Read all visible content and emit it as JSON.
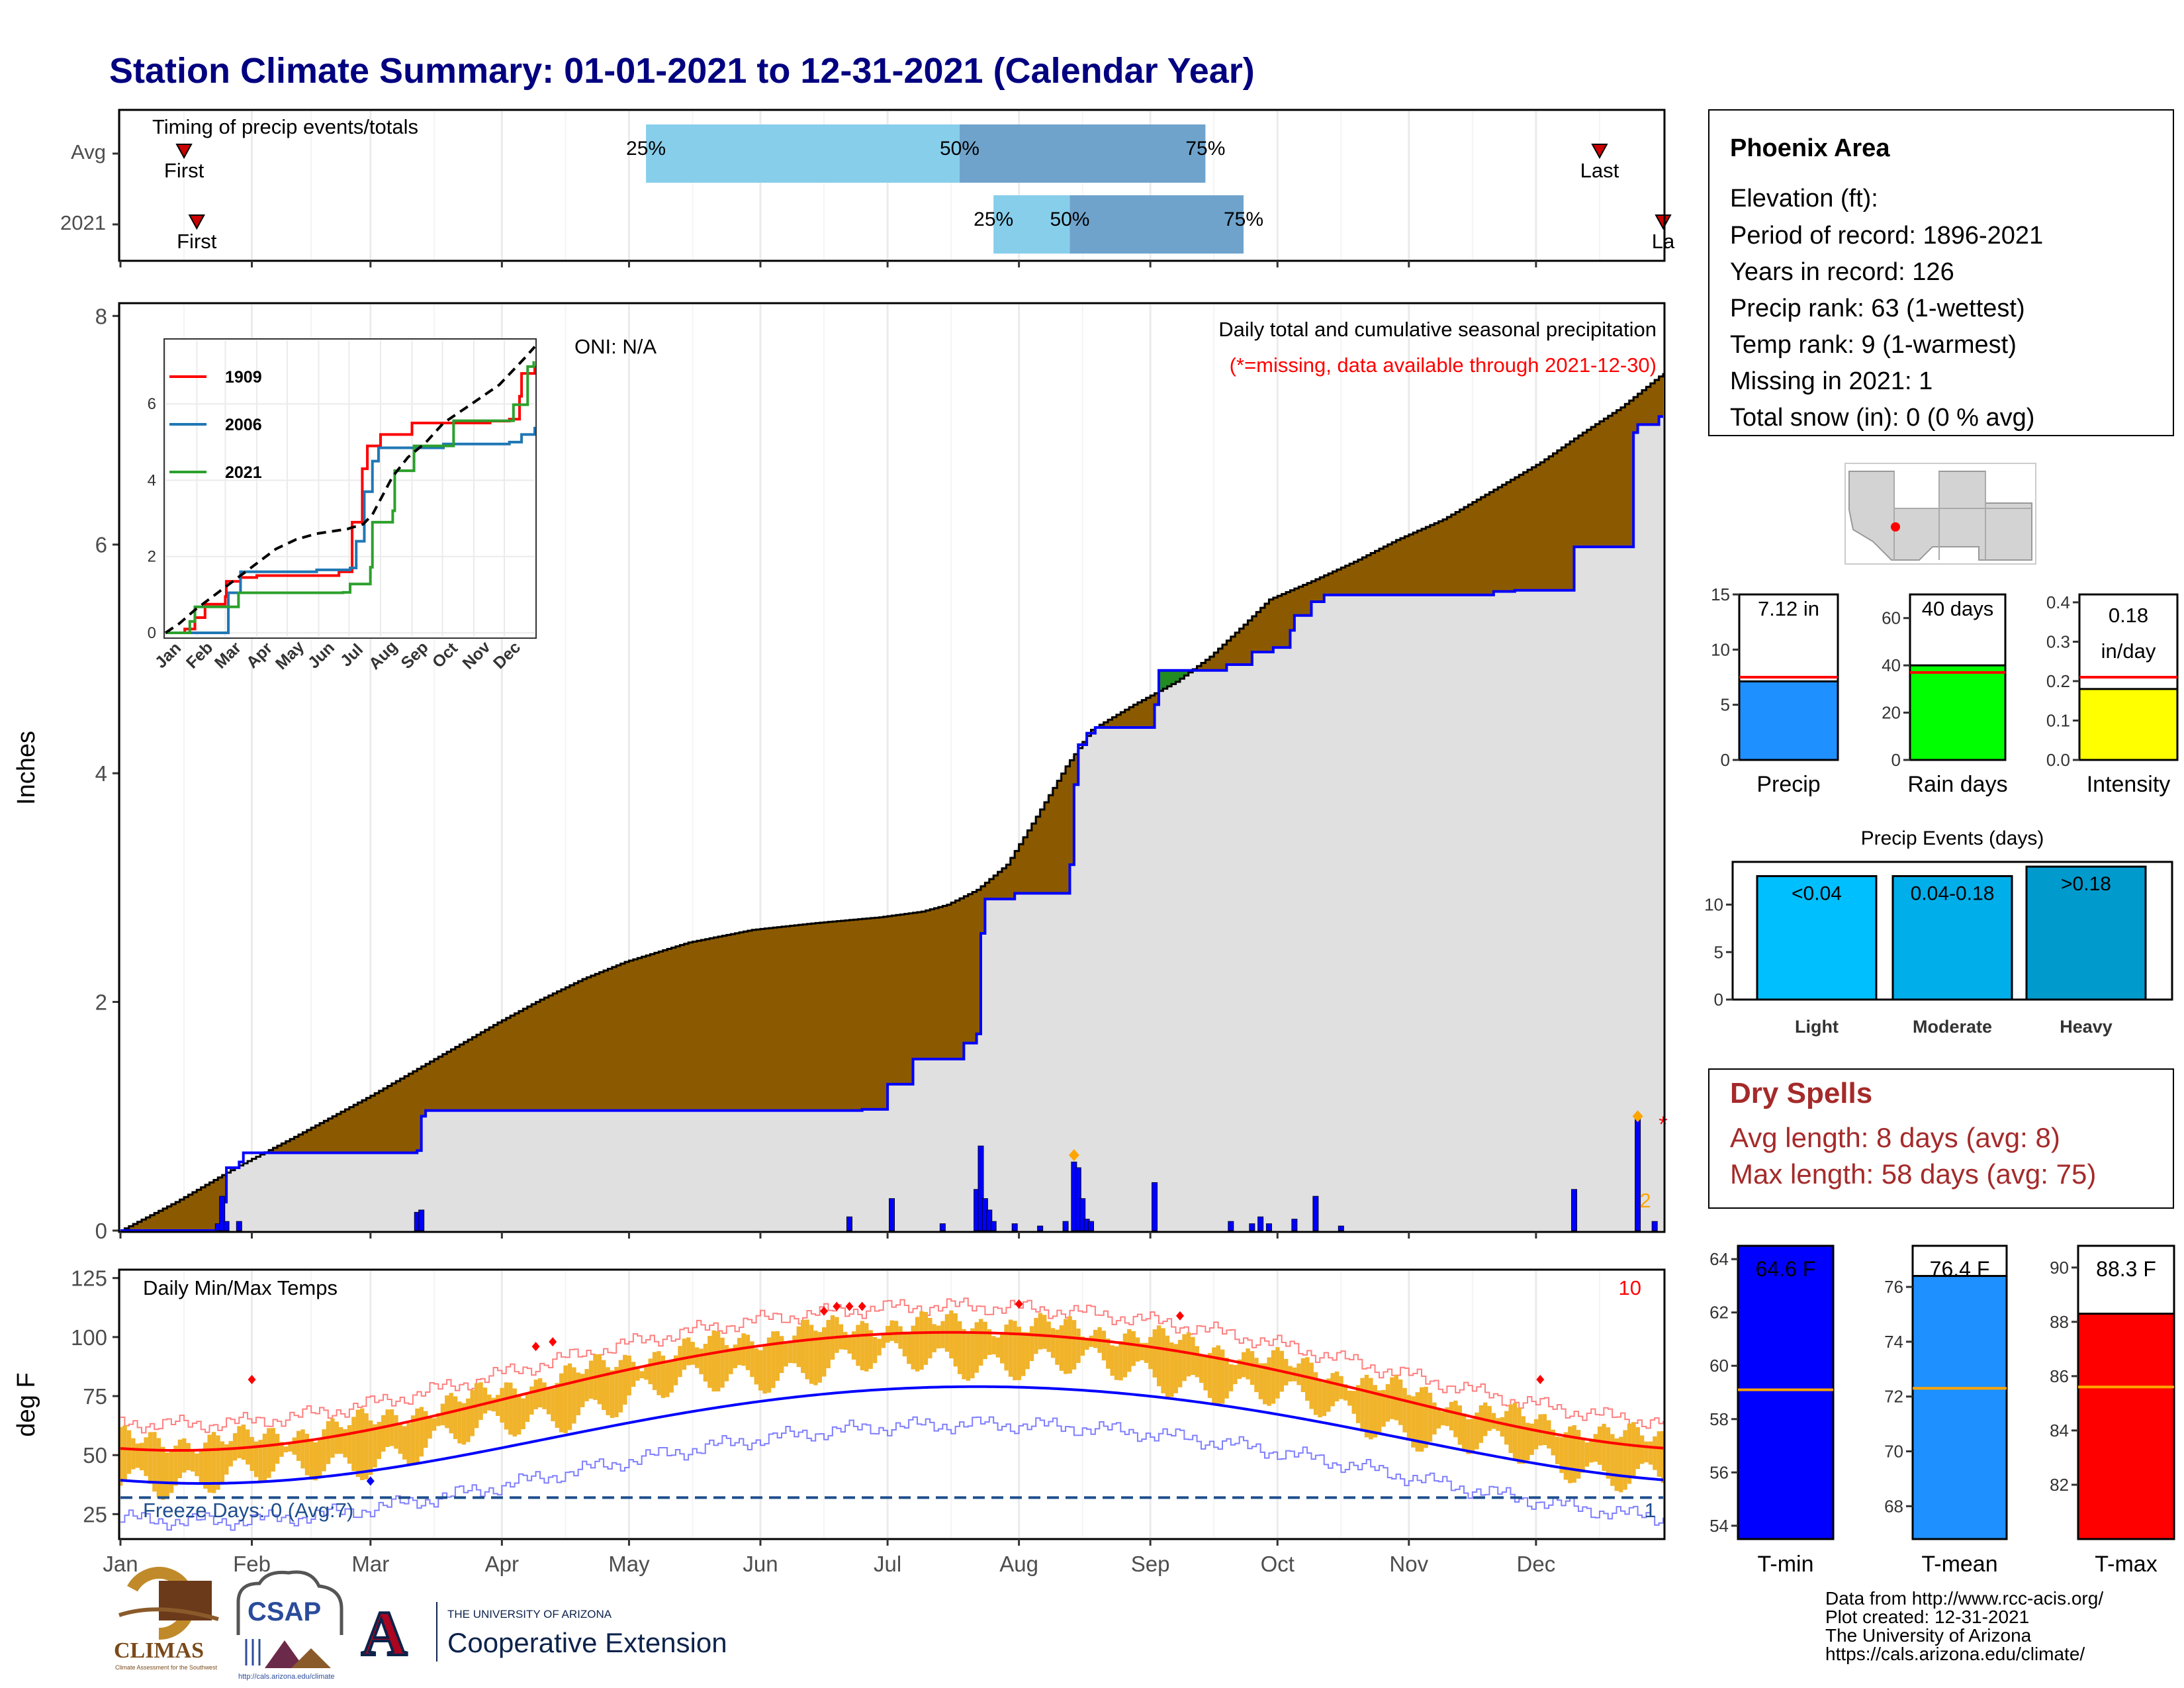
{
  "page": {
    "title": "Station Climate Summary: 01-01-2021 to 12-31-2021 (Calendar Year)"
  },
  "colors": {
    "title": "#000080",
    "cum_fill": "#8B5A00",
    "cum_line": "#0000FF",
    "avg_cum_gray": "#E0E0E0",
    "timing_light": "#87CEEB",
    "timing_dark": "#6FA3CC",
    "temp_band": "#F0B32A",
    "avg_max": "#FF0000",
    "avg_min": "#0000FF",
    "precip_bar": "#1E90FF",
    "raindays_bar": "#00FF00",
    "intensity_bar": "#FFFF00",
    "light_bar": "#00BFFF",
    "moderate_bar": "#00AEEA",
    "heavy_bar": "#009ACD",
    "dry_text": "#A52A2A",
    "tmin_bar": "#0000FF",
    "tmean_bar": "#1E90FF",
    "tmax_bar": "#FF0000",
    "orange_line": "#FFA500"
  },
  "timing": {
    "title": "Timing of precip events/totals",
    "rows": [
      "Avg",
      "2021"
    ],
    "avg": {
      "first_doy": 16,
      "q25_doy": 125,
      "q50_doy": 199,
      "q75_doy": 257,
      "last_doy": 350
    },
    "y2021": {
      "first_doy": 19,
      "q25_doy": 207,
      "q50_doy": 225,
      "q75_doy": 266,
      "last_doy": 365
    },
    "labels": {
      "first": "First",
      "last": "Last",
      "last_clipped": "La",
      "p25": "25%",
      "p50": "50%",
      "p75": "75%"
    }
  },
  "precip_panel": {
    "ylabel": "Inches",
    "oni": "ONI: N/A",
    "title": "Daily total and cumulative seasonal precipitation",
    "missing_note": "(*=missing, data available through 2021-12-30)",
    "missing_mark": "*",
    "count_mark": "2",
    "y_ticks": [
      0,
      2,
      4,
      6,
      8
    ],
    "ylim": [
      0,
      8.1
    ],
    "avg_cum": [
      [
        1,
        0
      ],
      [
        14,
        0.25
      ],
      [
        28,
        0.55
      ],
      [
        42,
        0.82
      ],
      [
        60,
        1.18
      ],
      [
        75,
        1.5
      ],
      [
        90,
        1.82
      ],
      [
        100,
        2.02
      ],
      [
        110,
        2.2
      ],
      [
        120,
        2.35
      ],
      [
        135,
        2.52
      ],
      [
        150,
        2.63
      ],
      [
        165,
        2.69
      ],
      [
        180,
        2.74
      ],
      [
        190,
        2.79
      ],
      [
        196,
        2.85
      ],
      [
        203,
        2.98
      ],
      [
        210,
        3.2
      ],
      [
        217,
        3.62
      ],
      [
        224,
        4.06
      ],
      [
        230,
        4.38
      ],
      [
        240,
        4.6
      ],
      [
        250,
        4.8
      ],
      [
        258,
        5.02
      ],
      [
        266,
        5.3
      ],
      [
        272,
        5.52
      ],
      [
        282,
        5.68
      ],
      [
        292,
        5.85
      ],
      [
        302,
        6.04
      ],
      [
        313,
        6.22
      ],
      [
        325,
        6.48
      ],
      [
        336,
        6.72
      ],
      [
        346,
        6.98
      ],
      [
        355,
        7.2
      ],
      [
        365,
        7.5
      ]
    ],
    "cum_2021": [
      [
        1,
        0
      ],
      [
        24,
        0
      ],
      [
        25,
        0.25
      ],
      [
        26,
        0.55
      ],
      [
        29,
        0.6
      ],
      [
        30,
        0.68
      ],
      [
        71,
        0.7
      ],
      [
        72,
        1.0
      ],
      [
        73,
        1.05
      ],
      [
        176,
        1.06
      ],
      [
        182,
        1.28
      ],
      [
        188,
        1.5
      ],
      [
        200,
        1.64
      ],
      [
        203,
        1.72
      ],
      [
        204,
        2.6
      ],
      [
        205,
        2.9
      ],
      [
        212,
        2.95
      ],
      [
        225,
        3.2
      ],
      [
        226,
        3.9
      ],
      [
        227,
        4.25
      ],
      [
        229,
        4.35
      ],
      [
        231,
        4.4
      ],
      [
        245,
        4.6
      ],
      [
        246,
        4.9
      ],
      [
        260,
        4.9
      ],
      [
        262,
        4.95
      ],
      [
        268,
        5.06
      ],
      [
        273,
        5.1
      ],
      [
        277,
        5.25
      ],
      [
        278,
        5.38
      ],
      [
        282,
        5.5
      ],
      [
        285,
        5.56
      ],
      [
        325,
        5.59
      ],
      [
        330,
        5.6
      ],
      [
        344,
        5.98
      ],
      [
        358,
        6.98
      ],
      [
        359,
        7.05
      ],
      [
        364,
        7.12
      ]
    ],
    "daily_2021": [
      [
        24,
        0.06
      ],
      [
        25,
        0.3
      ],
      [
        26,
        0.08
      ],
      [
        29,
        0.08
      ],
      [
        71,
        0.16
      ],
      [
        72,
        0.18
      ],
      [
        173,
        0.12
      ],
      [
        183,
        0.28
      ],
      [
        195,
        0.06
      ],
      [
        203,
        0.36
      ],
      [
        204,
        0.74
      ],
      [
        205,
        0.28
      ],
      [
        206,
        0.18
      ],
      [
        207,
        0.08
      ],
      [
        212,
        0.06
      ],
      [
        218,
        0.04
      ],
      [
        224,
        0.08
      ],
      [
        226,
        0.6
      ],
      [
        227,
        0.55
      ],
      [
        228,
        0.28
      ],
      [
        229,
        0.1
      ],
      [
        230,
        0.08
      ],
      [
        245,
        0.42
      ],
      [
        263,
        0.08
      ],
      [
        268,
        0.06
      ],
      [
        270,
        0.12
      ],
      [
        272,
        0.06
      ],
      [
        278,
        0.1
      ],
      [
        283,
        0.3
      ],
      [
        289,
        0.04
      ],
      [
        344,
        0.36
      ],
      [
        359,
        1.02
      ],
      [
        363,
        0.08
      ]
    ],
    "markers": [
      [
        226,
        0.66
      ],
      [
        359,
        1.0
      ]
    ]
  },
  "inset": {
    "series": [
      {
        "name": "1909",
        "color": "#FF0000",
        "pts": [
          [
            1,
            0
          ],
          [
            20,
            0.1
          ],
          [
            30,
            0.4
          ],
          [
            40,
            0.75
          ],
          [
            50,
            0.75
          ],
          [
            60,
            0.95
          ],
          [
            61,
            1.35
          ],
          [
            75,
            1.45
          ],
          [
            91,
            1.5
          ],
          [
            172,
            1.6
          ],
          [
            185,
            2.9
          ],
          [
            195,
            4.3
          ],
          [
            200,
            4.9
          ],
          [
            213,
            5.2
          ],
          [
            244,
            5.5
          ],
          [
            321,
            5.55
          ],
          [
            340,
            5.6
          ],
          [
            350,
            6.2
          ],
          [
            352,
            6.8
          ],
          [
            365,
            7.0
          ]
        ]
      },
      {
        "name": "2006",
        "color": "#1F77B4",
        "pts": [
          [
            1,
            0
          ],
          [
            62,
            0
          ],
          [
            63,
            1.05
          ],
          [
            75,
            1.6
          ],
          [
            150,
            1.65
          ],
          [
            183,
            1.7
          ],
          [
            189,
            2.4
          ],
          [
            197,
            3.7
          ],
          [
            205,
            4.5
          ],
          [
            211,
            4.85
          ],
          [
            275,
            4.95
          ],
          [
            340,
            5.0
          ],
          [
            352,
            5.2
          ],
          [
            365,
            5.4
          ]
        ]
      },
      {
        "name": "2021",
        "color": "#2CA02C",
        "pts": [
          [
            1,
            0
          ],
          [
            24,
            0
          ],
          [
            25,
            0.3
          ],
          [
            30,
            0.68
          ],
          [
            73,
            1.05
          ],
          [
            176,
            1.06
          ],
          [
            183,
            1.28
          ],
          [
            203,
            1.72
          ],
          [
            205,
            2.9
          ],
          [
            225,
            3.2
          ],
          [
            227,
            4.25
          ],
          [
            246,
            4.9
          ],
          [
            285,
            5.56
          ],
          [
            344,
            5.98
          ],
          [
            358,
            6.98
          ],
          [
            364,
            7.12
          ]
        ]
      }
    ],
    "avg": [
      [
        1,
        0
      ],
      [
        15,
        0.25
      ],
      [
        30,
        0.6
      ],
      [
        60,
        1.2
      ],
      [
        90,
        1.8
      ],
      [
        110,
        2.2
      ],
      [
        130,
        2.45
      ],
      [
        150,
        2.6
      ],
      [
        180,
        2.72
      ],
      [
        196,
        2.85
      ],
      [
        205,
        3.1
      ],
      [
        215,
        3.6
      ],
      [
        225,
        4.1
      ],
      [
        240,
        4.6
      ],
      [
        258,
        5.0
      ],
      [
        275,
        5.5
      ],
      [
        300,
        5.95
      ],
      [
        330,
        6.5
      ],
      [
        355,
        7.2
      ],
      [
        365,
        7.5
      ]
    ],
    "y_ticks": [
      0,
      2,
      4,
      6
    ]
  },
  "temp_panel": {
    "ylabel": "deg F",
    "title": "Daily Min/Max Temps",
    "freeze_text": "Freeze Days: 0 (Avg:7)",
    "count_top": "10",
    "count_bottom": "1",
    "y_ticks": [
      25,
      50,
      75,
      100,
      125
    ],
    "ylim": [
      15,
      128
    ],
    "freeze_line": 32,
    "hot_markers": [
      [
        32,
        82
      ],
      [
        99,
        96
      ],
      [
        103,
        98
      ],
      [
        167,
        111
      ],
      [
        170,
        113
      ],
      [
        173,
        113
      ],
      [
        176,
        113
      ],
      [
        213,
        114
      ],
      [
        251,
        109
      ],
      [
        336,
        82
      ]
    ],
    "cold_markers": [
      [
        60,
        39
      ]
    ]
  },
  "months": [
    "Jan",
    "Feb",
    "Mar",
    "Apr",
    "May",
    "Jun",
    "Jul",
    "Aug",
    "Sep",
    "Oct",
    "Nov",
    "Dec"
  ],
  "station": {
    "name": "Phoenix Area",
    "lines": [
      "Elevation (ft):",
      "Period of record: 1896-2021",
      "Years in record: 126",
      "Precip rank: 63 (1-wettest)",
      "Temp rank: 9 (1-warmest)",
      "Missing in 2021: 1",
      "Total snow (in): 0 (0 % avg)"
    ]
  },
  "summary_bars": [
    {
      "label": "Precip",
      "value": 7.12,
      "avg": 7.5,
      "text": "7.12 in",
      "ymax": 15,
      "ticks": [
        0,
        5,
        10,
        15
      ],
      "color": "#1E90FF"
    },
    {
      "label": "Rain days",
      "value": 40,
      "avg": 37,
      "text": "40 days",
      "ymax": 70,
      "ticks": [
        0,
        20,
        40,
        60
      ],
      "color": "#00FF00"
    },
    {
      "label": "Intensity",
      "value": 0.18,
      "avg": 0.21,
      "text": "0.18",
      "text2": "in/day",
      "ymax": 0.42,
      "ticks": [
        0.0,
        0.1,
        0.2,
        0.3,
        0.4
      ],
      "color": "#FFFF00"
    }
  ],
  "events": {
    "title": "Precip Events (days)",
    "ticks": [
      0,
      5,
      10
    ],
    "ymax": 14.5,
    "bars": [
      {
        "label": "Light",
        "value": 13,
        "text": "<0.04",
        "color": "#00BFFF"
      },
      {
        "label": "Moderate",
        "value": 13,
        "text": "0.04-0.18",
        "color": "#00AEEA"
      },
      {
        "label": "Heavy",
        "value": 14,
        "text": ">0.18",
        "color": "#009ACD"
      }
    ]
  },
  "dry_spells": {
    "title": "Dry Spells",
    "avg": "Avg length: 8 days (avg: 8)",
    "max": "Max length: 58 days (avg: 75)"
  },
  "temp_bars": [
    {
      "label": "T-min",
      "value": 64.6,
      "avg": 59.1,
      "text": "64.6 F",
      "ymin": 53.5,
      "ymax": 64.5,
      "ticks": [
        54,
        56,
        58,
        60,
        62,
        64
      ],
      "color": "#0000FF"
    },
    {
      "label": "T-mean",
      "value": 76.4,
      "avg": 72.3,
      "text": "76.4 F",
      "ymin": 66.8,
      "ymax": 77.5,
      "ticks": [
        68,
        70,
        72,
        74,
        76
      ],
      "color": "#1E90FF"
    },
    {
      "label": "T-max",
      "value": 88.3,
      "avg": 85.6,
      "text": "88.3 F",
      "ymin": 80,
      "ymax": 90.8,
      "ticks": [
        82,
        84,
        86,
        88,
        90
      ],
      "color": "#FF0000"
    }
  ],
  "credits": [
    "Data from http://www.rcc-acis.org/",
    "Plot created: 12-31-2021",
    "The University of Arizona",
    "https://cals.arizona.edu/climate/"
  ],
  "logos": {
    "climas": "CLIMAS",
    "climas_sub": "Climate Assessment for the Southwest",
    "csap": "CSAP",
    "csap_url": "http://cals.arizona.edu/climate",
    "ua_letter": "A",
    "ua_top": "THE UNIVERSITY OF ARIZONA",
    "ua_bottom": "Cooperative Extension"
  }
}
